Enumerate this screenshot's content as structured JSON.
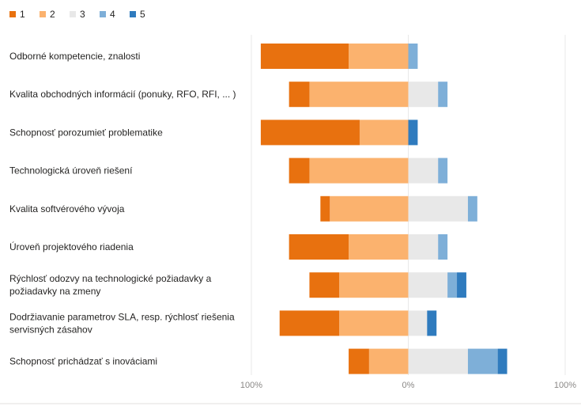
{
  "chart_data": {
    "type": "bar",
    "orientation": "horizontal",
    "stacked": "diverging",
    "categories": [
      "Odborné kompetencie, znalosti",
      "Kvalita obchodných informácií (ponuky, RFO, RFI, ... )",
      "Schopnosť porozumieť problematike",
      "Technologická úroveň riešení",
      "Kvalita softvérového vývoja",
      "Úroveň projektového riadenia",
      "Rýchlosť odozvy na technologické požiadavky a požiadavky na zmeny",
      "Dodržiavanie parametrov SLA, resp. rýchlosť riešenia servisných zásahov",
      "Schopnosť prichádzať s inováciami"
    ],
    "series": [
      {
        "name": "1",
        "color": "#E8710F",
        "side": "negative",
        "values": [
          56,
          13,
          63,
          13,
          6,
          38,
          19,
          38,
          13
        ]
      },
      {
        "name": "2",
        "color": "#FBB26E",
        "side": "negative",
        "values": [
          38,
          63,
          31,
          63,
          50,
          38,
          44,
          44,
          25
        ]
      },
      {
        "name": "3",
        "color": "#E8E8E8",
        "side": "positive",
        "values": [
          0,
          19,
          0,
          19,
          38,
          19,
          25,
          12,
          38
        ]
      },
      {
        "name": "4",
        "color": "#7EAFD8",
        "side": "positive",
        "values": [
          6,
          6,
          0,
          6,
          6,
          6,
          6,
          0,
          19
        ]
      },
      {
        "name": "5",
        "color": "#2F7BBE",
        "side": "positive",
        "values": [
          0,
          0,
          6,
          0,
          0,
          0,
          6,
          6,
          6
        ]
      }
    ],
    "xlim": [
      -100,
      100
    ],
    "x_ticks": [
      {
        "value": -100,
        "label": "100%"
      },
      {
        "value": 0,
        "label": "0%"
      },
      {
        "value": 100,
        "label": "100%"
      }
    ],
    "grid": true,
    "legend": "top-left",
    "title": "",
    "xlabel": "",
    "ylabel": ""
  }
}
